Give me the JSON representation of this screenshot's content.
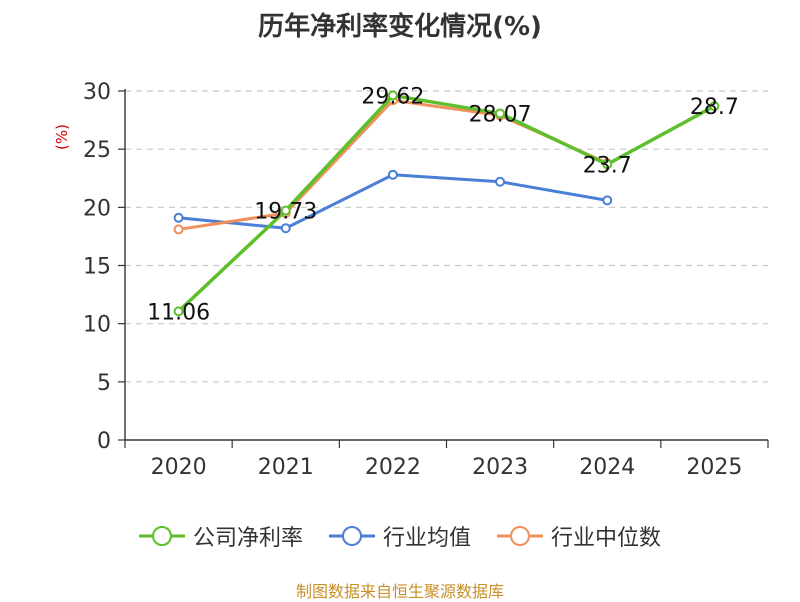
{
  "chart_data": {
    "type": "line",
    "title": "历年净利率变化情况(%)",
    "ylabel": "(%)",
    "xlabel": "",
    "categories": [
      "2020",
      "2021",
      "2022",
      "2023",
      "2024",
      "2025"
    ],
    "ylim": [
      0,
      30
    ],
    "yticks": [
      "0",
      "5",
      "10",
      "15",
      "20",
      "25",
      "30"
    ],
    "grid": true,
    "legend_position": "bottom",
    "series": [
      {
        "name": "公司净利率",
        "color": "#5dbf2b",
        "values": [
          11.06,
          19.73,
          29.62,
          28.07,
          23.7,
          28.7
        ],
        "labels": [
          "11.06",
          "19.73",
          "29.62",
          "28.07",
          "23.7",
          "28.7"
        ]
      },
      {
        "name": "行业均值",
        "color": "#4a7fd8",
        "values": [
          19.1,
          18.2,
          22.8,
          22.2,
          20.6,
          null
        ]
      },
      {
        "name": "行业中位数",
        "color": "#f0905a",
        "values": [
          18.1,
          19.5,
          29.2,
          27.9,
          23.8,
          null
        ]
      }
    ]
  },
  "source": "制图数据来自恒生聚源数据库"
}
